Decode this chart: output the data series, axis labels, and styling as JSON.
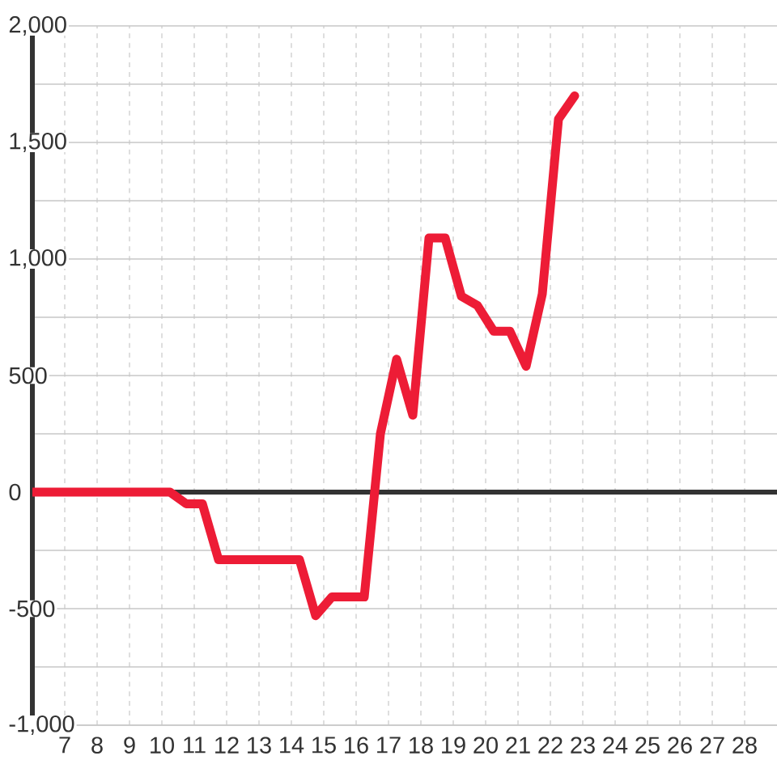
{
  "chart_data": {
    "type": "line",
    "x": [
      6,
      10.25,
      10.75,
      11.25,
      11.75,
      14.25,
      14.75,
      15.25,
      16.25,
      16.75,
      17.25,
      17.75,
      18.25,
      18.75,
      19.25,
      19.75,
      20.25,
      20.75,
      21.25,
      21.75,
      22.25,
      22.75
    ],
    "values": [
      0,
      0,
      -50,
      -50,
      -290,
      -290,
      -530,
      -450,
      -450,
      250,
      570,
      330,
      1090,
      1090,
      840,
      800,
      690,
      690,
      540,
      850,
      1600,
      1700
    ],
    "color": "#ed1c36",
    "xlim": [
      6,
      29
    ],
    "xticks": [
      7,
      8,
      9,
      10,
      11,
      12,
      13,
      14,
      15,
      16,
      17,
      18,
      19,
      20,
      21,
      22,
      23,
      24,
      25,
      26,
      27,
      28
    ],
    "ylim": [
      -1000,
      2000
    ],
    "yticks": [
      {
        "value": -1000,
        "label": "-1,000"
      },
      {
        "value": -750,
        "label": null
      },
      -500,
      {
        "value": -250,
        "label": null
      },
      0,
      {
        "value": 250,
        "label": null
      },
      500,
      {
        "value": 750,
        "label": null
      },
      {
        "value": 1000,
        "label": "1,000"
      },
      {
        "value": 1250,
        "label": null
      },
      {
        "value": 1500,
        "label": "1,500"
      },
      {
        "value": 1750,
        "label": null
      },
      {
        "value": 2000,
        "label": "2,000"
      }
    ],
    "grid": true,
    "marker": "none",
    "line_style": "solid",
    "ref_lines": [
      {
        "axis": "y",
        "value": 0,
        "color": "#333333"
      }
    ]
  }
}
